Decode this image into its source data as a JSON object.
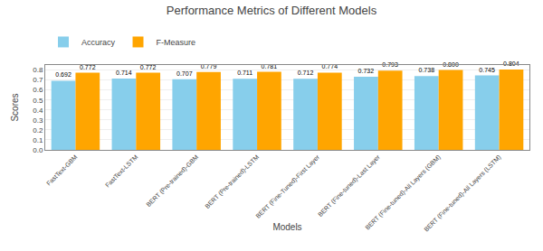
{
  "chart_data": {
    "type": "bar",
    "title": "Performance Metrics of Different Models",
    "xlabel": "Models",
    "ylabel": "Scores",
    "categories": [
      "FastText-GBM",
      "FastText-LSTM",
      "BERT (Pre-trained)-GBM",
      "BERT (Pre-trained)-LSTM",
      "BERT (Fine-Tuned)-First Layer",
      "BERT (Fine-tuned)-Last Layer",
      "BERT (Fine-tuned)-All Layers (GBM)",
      "BERT (Fine-tuned)-All Layers (LSTM)"
    ],
    "series": [
      {
        "name": "Accuracy",
        "color": "#87CEEB",
        "values": [
          0.692,
          0.714,
          0.707,
          0.711,
          0.712,
          0.732,
          0.738,
          0.745
        ],
        "value_labels": [
          "0.692",
          "0.714",
          "0.707",
          "0.711",
          "0.712",
          "0.732",
          "0.738",
          "0.745"
        ]
      },
      {
        "name": "F-Measure",
        "color": "#FFA500",
        "values": [
          0.772,
          0.772,
          0.779,
          0.781,
          0.774,
          0.793,
          0.8,
          0.804
        ],
        "value_labels": [
          "0.772",
          "0.772",
          "0.779",
          "0.781",
          "0.774",
          "0.793",
          "0.800",
          "0.804"
        ]
      }
    ],
    "ylim": [
      0.0,
      0.85
    ],
    "yticks": [
      {
        "value": 0,
        "label": "0.0"
      },
      0.1,
      0.2,
      0.3,
      0.4,
      0.5,
      0.6,
      0.7,
      0.8
    ],
    "grid": true,
    "legend": "upper left",
    "data_labels": true
  }
}
